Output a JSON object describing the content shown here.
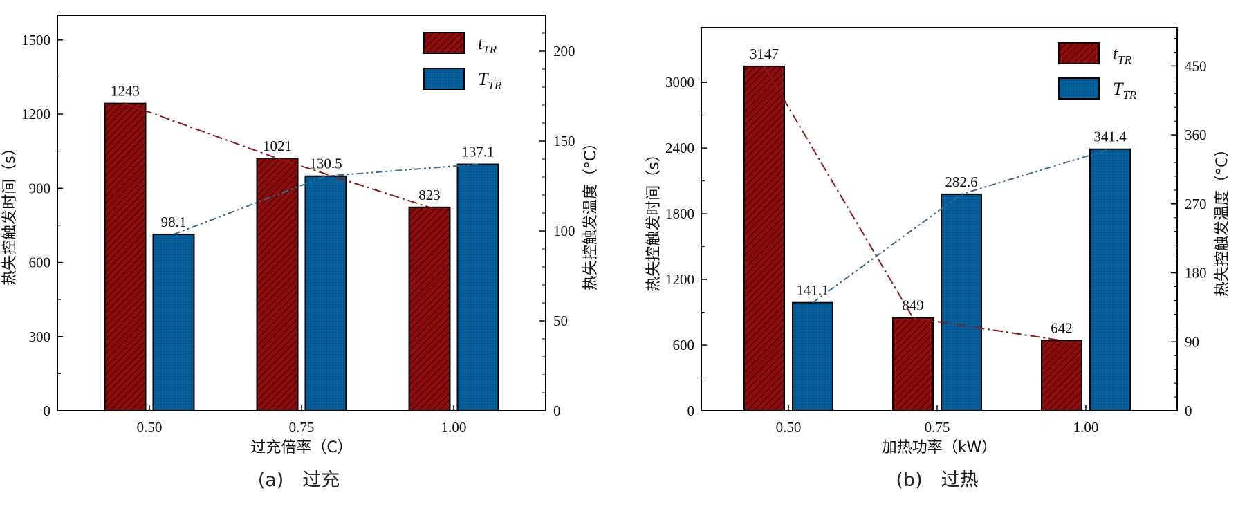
{
  "colors": {
    "red": "#8b0d0d",
    "blue": "#07619e",
    "red_line": "#8b1a1a",
    "blue_line": "#3a6b8c"
  },
  "chart_data": [
    {
      "type": "bar",
      "caption": "(a)　过充",
      "categories": [
        "0.50",
        "0.75",
        "1.00"
      ],
      "xlabel": "过充倍率（C）",
      "ylabel_left": "热失控触发时间（s）",
      "ylabel_right": "热失控触发温度（°C）",
      "ylim_left": [
        0,
        1600
      ],
      "yticks_left": [
        0,
        300,
        600,
        900,
        1200,
        1500
      ],
      "ylim_right": [
        0,
        220
      ],
      "yticks_right": [
        0,
        50,
        100,
        150,
        200
      ],
      "series": [
        {
          "name": "t",
          "sub": "TR",
          "axis": "left",
          "values": [
            1243,
            1021,
            823
          ],
          "labels": [
            "1243",
            "1021",
            "823"
          ]
        },
        {
          "name": "T",
          "sub": "TR",
          "axis": "right",
          "values": [
            98.1,
            130.5,
            137.1
          ],
          "labels": [
            "98.1",
            "130.5",
            "137.1"
          ]
        }
      ],
      "legend": "top-right"
    },
    {
      "type": "bar",
      "caption": "(b)　过热",
      "categories": [
        "0.50",
        "0.75",
        "1.00"
      ],
      "xlabel": "加热功率（kW）",
      "ylabel_left": "热失控触发时间（s）",
      "ylabel_right": "热失控触发温度（°C）",
      "ylim_left": [
        0,
        3500
      ],
      "yticks_left": [
        0,
        600,
        1200,
        1800,
        2400,
        3000
      ],
      "ylim_right": [
        0,
        500
      ],
      "yticks_right": [
        0,
        90,
        180,
        270,
        360,
        450
      ],
      "series": [
        {
          "name": "t",
          "sub": "TR",
          "axis": "left",
          "values": [
            3147,
            849,
            642
          ],
          "labels": [
            "3147",
            "849",
            "642"
          ]
        },
        {
          "name": "T",
          "sub": "TR",
          "axis": "right",
          "values": [
            141.1,
            282.6,
            341.4
          ],
          "labels": [
            "141.1",
            "282.6",
            "341.4"
          ]
        }
      ],
      "legend": "top-right"
    }
  ]
}
